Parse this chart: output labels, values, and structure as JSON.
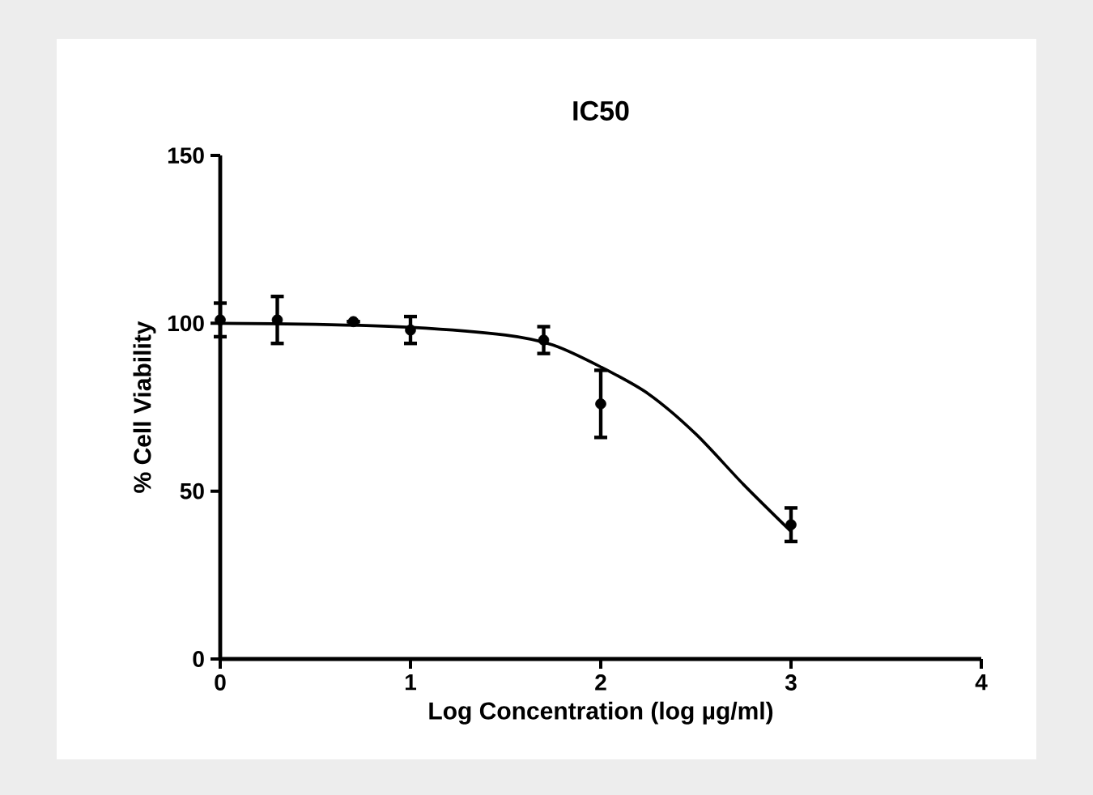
{
  "chart_data": {
    "type": "scatter",
    "title": "IC50",
    "xlabel": "Log Concentration (log µg/ml)",
    "ylabel": "% Cell Viability",
    "xlim": [
      0,
      4
    ],
    "xticks": [
      0,
      1,
      2,
      3,
      4
    ],
    "ylim": [
      0,
      150
    ],
    "yticks": [
      0,
      50,
      100,
      150
    ],
    "series": [
      {
        "marker": "circle",
        "color": "#000000",
        "x": [
          0,
          0.3,
          0.7,
          1,
          1.7,
          2,
          3
        ],
        "values": [
          101,
          101,
          100.5,
          98,
          95,
          76,
          40
        ],
        "errors": [
          5,
          7,
          null,
          4,
          4,
          10,
          5
        ]
      },
      {
        "type": "line",
        "marker": "none",
        "color": "#000000",
        "x": [
          0,
          0.5,
          1,
          1.5,
          1.75,
          2,
          2.25,
          2.5,
          2.75,
          3
        ],
        "values": [
          100,
          99.7,
          98.8,
          96.5,
          93.5,
          87,
          79,
          67,
          52,
          38
        ]
      }
    ]
  }
}
